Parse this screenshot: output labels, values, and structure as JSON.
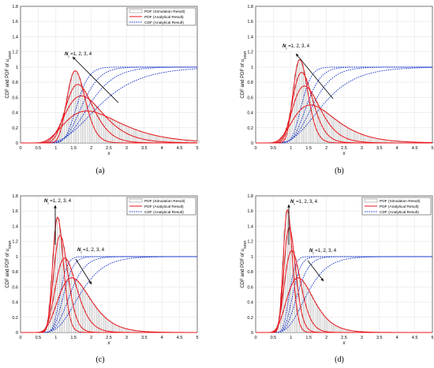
{
  "chart_data": [
    {
      "panel": "(a)",
      "type": "line",
      "xlabel": "x",
      "ylabel": "CDF and PDF of u_{SINR}",
      "xlim": [
        0,
        5
      ],
      "ylim": [
        0,
        1.8
      ],
      "xticks": [
        "0",
        "0.5",
        "1",
        "1.5",
        "2",
        "2.5",
        "3",
        "3.5",
        "4",
        "4.5",
        "5"
      ],
      "yticks": [
        "0",
        "0.2",
        "0.4",
        "0.6",
        "0.8",
        "1",
        "1.2",
        "1.4",
        "1.6",
        "1.8"
      ],
      "legend": {
        "position": "top-right",
        "entries": [
          "PDF (Simulation Result)",
          "PDF (Analytical Result)",
          "CDF (Analytical Result)"
        ]
      },
      "annotations": [
        {
          "text": "N_I =1, 2, 3, 4",
          "arrow": "up-left"
        }
      ],
      "grid": true,
      "curves": [
        {
          "name": "PDF (Analytical Result)",
          "N": 1,
          "peak_x": 1.55,
          "peak_y": 0.95,
          "shape": 6
        },
        {
          "name": "PDF (Analytical Result)",
          "N": 2,
          "peak_x": 1.62,
          "peak_y": 0.77,
          "shape": 4.2
        },
        {
          "name": "PDF (Analytical Result)",
          "N": 3,
          "peak_x": 1.72,
          "peak_y": 0.62,
          "shape": 3.2
        },
        {
          "name": "PDF (Analytical Result)",
          "N": 4,
          "peak_x": 1.88,
          "peak_y": 0.42,
          "shape": 2.4
        }
      ],
      "cdf_curves": [
        {
          "name": "CDF (Analytical Result)",
          "N": 1,
          "median_x": 1.6,
          "shape": 6
        },
        {
          "name": "CDF (Analytical Result)",
          "N": 2,
          "median_x": 1.75,
          "shape": 4.5
        },
        {
          "name": "CDF (Analytical Result)",
          "N": 3,
          "median_x": 1.95,
          "shape": 3.5
        },
        {
          "name": "CDF (Analytical Result)",
          "N": 4,
          "median_x": 2.25,
          "shape": 2.5
        }
      ]
    },
    {
      "panel": "(b)",
      "type": "line",
      "xlabel": "x",
      "ylabel": "CDF and PDF of u_{SINR}",
      "xlim": [
        0,
        5
      ],
      "ylim": [
        0,
        1.8
      ],
      "xticks": [
        "0",
        "0.5",
        "1",
        "1.5",
        "2",
        "2.5",
        "3",
        "3.5",
        "4",
        "4.5",
        "5"
      ],
      "yticks": [
        "0",
        "0.2",
        "0.4",
        "0.6",
        "0.8",
        "1",
        "1.2",
        "1.4",
        "1.6",
        "1.8"
      ],
      "legend": {
        "position": "none",
        "entries": []
      },
      "annotations": [
        {
          "text": "N_I =1, 2, 3, 4",
          "arrow": "up-left"
        }
      ],
      "grid": true,
      "curves": [
        {
          "name": "PDF (Analytical Result)",
          "N": 1,
          "peak_x": 1.25,
          "peak_y": 1.1,
          "shape": 6
        },
        {
          "name": "PDF (Analytical Result)",
          "N": 2,
          "peak_x": 1.3,
          "peak_y": 0.93,
          "shape": 4.6
        },
        {
          "name": "PDF (Analytical Result)",
          "N": 3,
          "peak_x": 1.38,
          "peak_y": 0.75,
          "shape": 3.6
        },
        {
          "name": "PDF (Analytical Result)",
          "N": 4,
          "peak_x": 1.55,
          "peak_y": 0.5,
          "shape": 2.6
        }
      ],
      "cdf_curves": [
        {
          "name": "CDF (Analytical Result)",
          "N": 1,
          "median_x": 1.3,
          "shape": 6
        },
        {
          "name": "CDF (Analytical Result)",
          "N": 2,
          "median_x": 1.45,
          "shape": 4.6
        },
        {
          "name": "CDF (Analytical Result)",
          "N": 3,
          "median_x": 1.62,
          "shape": 3.6
        },
        {
          "name": "CDF (Analytical Result)",
          "N": 4,
          "median_x": 1.9,
          "shape": 2.6
        }
      ]
    },
    {
      "panel": "(c)",
      "type": "line",
      "xlabel": "x",
      "ylabel": "CDF and PDF of u_{SINR}",
      "xlim": [
        0,
        5
      ],
      "ylim": [
        0,
        1.8
      ],
      "xticks": [
        "0",
        "0.5",
        "1",
        "1.5",
        "2",
        "2.5",
        "3",
        "3.5",
        "4",
        "4.5",
        "5"
      ],
      "yticks": [
        "0",
        "0.2",
        "0.4",
        "0.6",
        "0.8",
        "1",
        "1.2",
        "1.4",
        "1.6",
        "1.8"
      ],
      "legend": {
        "position": "top-right",
        "entries": [
          "PDF (Simulation Result)",
          "PDF (Analytical Result)",
          "CDF (Analytical Result)"
        ]
      },
      "annotations": [
        {
          "text": "N_I =1, 2, 3, 4",
          "arrow": "up"
        },
        {
          "text": "N_I =1, 2, 3, 4",
          "arrow": "down-right"
        }
      ],
      "grid": true,
      "curves": [
        {
          "name": "PDF (Analytical Result)",
          "N": 1,
          "peak_x": 1.05,
          "peak_y": 1.52,
          "shape": 7
        },
        {
          "name": "PDF (Analytical Result)",
          "N": 2,
          "peak_x": 1.12,
          "peak_y": 1.28,
          "shape": 5.6
        },
        {
          "name": "PDF (Analytical Result)",
          "N": 3,
          "peak_x": 1.25,
          "peak_y": 0.98,
          "shape": 4.2
        },
        {
          "name": "PDF (Analytical Result)",
          "N": 4,
          "peak_x": 1.45,
          "peak_y": 0.72,
          "shape": 3.2
        }
      ],
      "cdf_curves": [
        {
          "name": "CDF (Analytical Result)",
          "N": 1,
          "median_x": 1.12,
          "shape": 7
        },
        {
          "name": "CDF (Analytical Result)",
          "N": 2,
          "median_x": 1.22,
          "shape": 5.6
        },
        {
          "name": "CDF (Analytical Result)",
          "N": 3,
          "median_x": 1.4,
          "shape": 4.2
        },
        {
          "name": "CDF (Analytical Result)",
          "N": 4,
          "median_x": 1.68,
          "shape": 3.2
        }
      ]
    },
    {
      "panel": "(d)",
      "type": "line",
      "xlabel": "x",
      "ylabel": "CDF and PDF of u_{SINR}",
      "xlim": [
        0,
        5
      ],
      "ylim": [
        0,
        1.8
      ],
      "xticks": [
        "0",
        "0.5",
        "1",
        "1.5",
        "2",
        "2.5",
        "3",
        "3.5",
        "4",
        "4.5",
        "5"
      ],
      "yticks": [
        "0",
        "0.2",
        "0.4",
        "0.6",
        "0.8",
        "1",
        "1.2",
        "1.4",
        "1.6",
        "1.8"
      ],
      "legend": {
        "position": "top-right",
        "entries": [
          "PDF (Simulation Result)",
          "PDF (Analytical Result)",
          "CDF (Analytical Result)"
        ]
      },
      "annotations": [
        {
          "text": "N_I =1, 2, 3, 4",
          "arrow": "up"
        },
        {
          "text": "N_I =1, 2, 3, 4",
          "arrow": "down-right"
        }
      ],
      "grid": true,
      "curves": [
        {
          "name": "PDF (Analytical Result)",
          "N": 1,
          "peak_x": 0.9,
          "peak_y": 1.62,
          "shape": 7
        },
        {
          "name": "PDF (Analytical Result)",
          "N": 2,
          "peak_x": 0.95,
          "peak_y": 1.38,
          "shape": 5.8
        },
        {
          "name": "PDF (Analytical Result)",
          "N": 3,
          "peak_x": 1.02,
          "peak_y": 1.08,
          "shape": 4.5
        },
        {
          "name": "PDF (Analytical Result)",
          "N": 4,
          "peak_x": 1.2,
          "peak_y": 0.72,
          "shape": 3.2
        }
      ],
      "cdf_curves": [
        {
          "name": "CDF (Analytical Result)",
          "N": 1,
          "median_x": 0.95,
          "shape": 7
        },
        {
          "name": "CDF (Analytical Result)",
          "N": 2,
          "median_x": 1.05,
          "shape": 5.8
        },
        {
          "name": "CDF (Analytical Result)",
          "N": 3,
          "median_x": 1.18,
          "shape": 4.5
        },
        {
          "name": "CDF (Analytical Result)",
          "N": 4,
          "median_x": 1.45,
          "shape": 3.2
        }
      ]
    }
  ],
  "colors": {
    "pdf": "#e8161c",
    "cdf": "#1432c8",
    "hist": "#7f7f7f",
    "grid": "#e6e6e6",
    "axis": "#262626"
  }
}
